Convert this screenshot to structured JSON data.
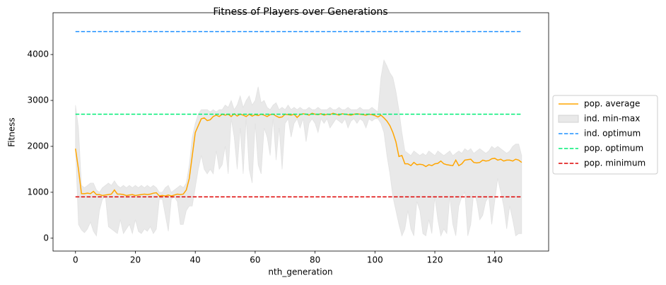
{
  "chart_data": {
    "type": "line",
    "title": "Fitness of Players over Generations",
    "x_label": "nth_generation",
    "y_label": "Fitness",
    "xlim": [
      -7.5,
      158
    ],
    "ylim": [
      -280,
      4910
    ],
    "xticks": [
      0,
      20,
      40,
      60,
      80,
      100,
      120,
      140
    ],
    "yticks": [
      0,
      1000,
      2000,
      3000,
      4000
    ],
    "grid": false,
    "legend": "right",
    "x": [
      0,
      1,
      2,
      3,
      4,
      5,
      6,
      7,
      8,
      9,
      10,
      11,
      12,
      13,
      14,
      15,
      16,
      17,
      18,
      19,
      20,
      21,
      22,
      23,
      24,
      25,
      26,
      27,
      28,
      29,
      30,
      31,
      32,
      33,
      34,
      35,
      36,
      37,
      38,
      39,
      40,
      41,
      42,
      43,
      44,
      45,
      46,
      47,
      48,
      49,
      50,
      51,
      52,
      53,
      54,
      55,
      56,
      57,
      58,
      59,
      60,
      61,
      62,
      63,
      64,
      65,
      66,
      67,
      68,
      69,
      70,
      71,
      72,
      73,
      74,
      75,
      76,
      77,
      78,
      79,
      80,
      81,
      82,
      83,
      84,
      85,
      86,
      87,
      88,
      89,
      90,
      91,
      92,
      93,
      94,
      95,
      96,
      97,
      98,
      99,
      100,
      101,
      102,
      103,
      104,
      105,
      106,
      107,
      108,
      109,
      110,
      111,
      112,
      113,
      114,
      115,
      116,
      117,
      118,
      119,
      120,
      121,
      122,
      123,
      124,
      125,
      126,
      127,
      128,
      129,
      130,
      131,
      132,
      133,
      134,
      135,
      136,
      137,
      138,
      139,
      140,
      141,
      142,
      143,
      144,
      145,
      146,
      147,
      148,
      149
    ],
    "series": [
      {
        "name": "pop. average",
        "kind": "line",
        "color": "#ffa500",
        "values": [
          1950,
          1500,
          970,
          970,
          980,
          970,
          1020,
          950,
          950,
          930,
          940,
          950,
          960,
          1050,
          960,
          960,
          950,
          930,
          940,
          950,
          930,
          940,
          950,
          960,
          950,
          960,
          980,
          990,
          920,
          930,
          920,
          940,
          920,
          940,
          960,
          950,
          960,
          1050,
          1300,
          1800,
          2300,
          2450,
          2600,
          2620,
          2560,
          2580,
          2650,
          2680,
          2650,
          2700,
          2680,
          2700,
          2650,
          2710,
          2660,
          2700,
          2680,
          2650,
          2700,
          2660,
          2690,
          2670,
          2700,
          2680,
          2650,
          2690,
          2700,
          2660,
          2630,
          2640,
          2700,
          2690,
          2680,
          2700,
          2630,
          2690,
          2710,
          2700,
          2680,
          2720,
          2700,
          2690,
          2710,
          2680,
          2700,
          2690,
          2720,
          2700,
          2680,
          2710,
          2700,
          2690,
          2680,
          2700,
          2710,
          2700,
          2690,
          2680,
          2700,
          2690,
          2670,
          2640,
          2680,
          2620,
          2550,
          2450,
          2300,
          2100,
          1780,
          1800,
          1620,
          1620,
          1580,
          1650,
          1600,
          1610,
          1600,
          1560,
          1600,
          1580,
          1620,
          1630,
          1680,
          1620,
          1600,
          1590,
          1580,
          1700,
          1580,
          1620,
          1700,
          1710,
          1720,
          1650,
          1640,
          1650,
          1700,
          1680,
          1690,
          1730,
          1740,
          1700,
          1720,
          1680,
          1700,
          1700,
          1680,
          1720,
          1700,
          1650
        ]
      },
      {
        "name": "ind. min-max",
        "kind": "band",
        "color": "#d3d3d3",
        "lower": [
          1950,
          300,
          180,
          120,
          200,
          350,
          150,
          50,
          600,
          850,
          900,
          250,
          200,
          150,
          100,
          400,
          100,
          200,
          300,
          100,
          400,
          150,
          100,
          200,
          150,
          250,
          100,
          200,
          850,
          850,
          500,
          150,
          850,
          900,
          800,
          300,
          300,
          600,
          700,
          700,
          1100,
          1500,
          1800,
          1500,
          1400,
          1500,
          1400,
          1900,
          1500,
          1600,
          2000,
          1400,
          2600,
          2200,
          1500,
          2400,
          1400,
          2600,
          1500,
          1200,
          2500,
          1600,
          1400,
          2400,
          2200,
          1800,
          2600,
          1700,
          2400,
          1500,
          2500,
          2600,
          2200,
          2500,
          2600,
          2400,
          2600,
          2100,
          2500,
          2600,
          2500,
          2300,
          2600,
          2500,
          2600,
          2400,
          2500,
          2600,
          2550,
          2500,
          2600,
          2400,
          2550,
          2600,
          2500,
          2600,
          2550,
          2400,
          2600,
          2550,
          2600,
          2600,
          2500,
          2300,
          1800,
          1400,
          900,
          600,
          300,
          50,
          200,
          600,
          200,
          50,
          800,
          600,
          100,
          50,
          400,
          100,
          900,
          400,
          50,
          200,
          100,
          900,
          300,
          50,
          700,
          900,
          1000,
          50,
          300,
          1000,
          800,
          400,
          500,
          800,
          900,
          300,
          800,
          1300,
          1000,
          700,
          200,
          700,
          400,
          50,
          100,
          100
        ],
        "upper": [
          2900,
          2400,
          1150,
          1100,
          1150,
          1200,
          1200,
          1050,
          1000,
          1100,
          1150,
          1200,
          1150,
          1250,
          1150,
          1100,
          1150,
          1100,
          1150,
          1100,
          1150,
          1100,
          1150,
          1100,
          1150,
          1100,
          1150,
          1100,
          1000,
          1000,
          1100,
          1150,
          1000,
          1050,
          1100,
          1150,
          1100,
          1200,
          1600,
          2200,
          2500,
          2700,
          2800,
          2800,
          2800,
          2750,
          2800,
          2750,
          2800,
          2800,
          2900,
          2850,
          3000,
          2800,
          2900,
          3100,
          2850,
          3000,
          3100,
          2900,
          3000,
          3300,
          2950,
          3000,
          2850,
          2800,
          2900,
          2950,
          2800,
          2850,
          2800,
          2900,
          2800,
          2850,
          2800,
          2850,
          2800,
          2800,
          2850,
          2800,
          2800,
          2850,
          2800,
          2800,
          2800,
          2850,
          2800,
          2800,
          2850,
          2800,
          2800,
          2850,
          2800,
          2800,
          2800,
          2850,
          2800,
          2800,
          2800,
          2850,
          2800,
          2750,
          3500,
          3880,
          3750,
          3600,
          3500,
          3200,
          2800,
          2300,
          1900,
          1850,
          1800,
          1900,
          1850,
          1800,
          1850,
          1800,
          1900,
          1850,
          1800,
          1900,
          1850,
          1800,
          1850,
          1900,
          1800,
          1850,
          1900,
          1850,
          1950,
          1900,
          1950,
          1850,
          1900,
          1950,
          1900,
          1850,
          1900,
          2000,
          1950,
          2000,
          1950,
          1900,
          1850,
          1900,
          2000,
          2050,
          2050,
          1800
        ]
      },
      {
        "name": "ind. optimum",
        "kind": "hline",
        "color": "#1e90ff",
        "value": 4500
      },
      {
        "name": "pop. optimum",
        "kind": "hline",
        "color": "#00ee76",
        "value": 2700
      },
      {
        "name": "pop. minimum",
        "kind": "hline",
        "color": "#dd0000",
        "value": 900
      }
    ]
  }
}
